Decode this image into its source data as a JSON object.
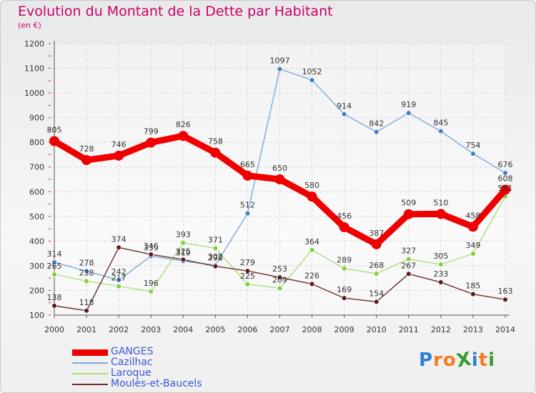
{
  "title": "Evolution du Montant de la Dette par Habitant",
  "subtitle": "(en €)",
  "logo": {
    "text": "ProXiti",
    "letters": [
      "P",
      "r",
      "o",
      "X",
      "i",
      "t",
      "i"
    ],
    "colors": [
      "#2f7ed8",
      "#f47b20",
      "#f47b20",
      "#3a9b2e",
      "#2f7ed8",
      "#f47b20",
      "#3a9b2e"
    ]
  },
  "chart_data": {
    "type": "line",
    "title": "Evolution du Montant de la Dette par Habitant",
    "subtitle": "(en €)",
    "x": [
      "2000",
      "2001",
      "2002",
      "2003",
      "2004",
      "2005",
      "2006",
      "2007",
      "2008",
      "2009",
      "2010",
      "2011",
      "2012",
      "2013",
      "2014"
    ],
    "yticks": [
      "100",
      "200",
      "300",
      "400",
      "500",
      "600",
      "700",
      "800",
      "900",
      "1000",
      "1100",
      "1200"
    ],
    "ylim": [
      100,
      1200
    ],
    "grid": true,
    "legend_position": "bottom-left",
    "series": [
      {
        "name": "GANGES",
        "color": "#ee0000",
        "point_color": "#ee0000",
        "emphasis": true,
        "values": [
          805,
          728,
          746,
          799,
          826,
          758,
          665,
          650,
          580,
          456,
          387,
          509,
          510,
          458,
          608
        ]
      },
      {
        "name": "Cazilhac",
        "color": "#7aa9db",
        "point_color": "#3a7fc9",
        "values": [
          314,
          278,
          242,
          339,
          319,
          302,
          512,
          1097,
          1052,
          914,
          842,
          919,
          845,
          754,
          676
        ]
      },
      {
        "name": "Laroque",
        "color": "#a8e07a",
        "point_color": "#7ed03a",
        "values": [
          265,
          238,
          217,
          196,
          393,
          371,
          225,
          209,
          364,
          289,
          268,
          327,
          305,
          349,
          581
        ]
      },
      {
        "name": "Moulès-et-Baucels",
        "color": "#6b2d2d",
        "point_color": "#5a1a1a",
        "values": [
          138,
          118,
          374,
          346,
          325,
          298,
          279,
          253,
          226,
          169,
          154,
          267,
          233,
          185,
          163
        ]
      }
    ]
  }
}
